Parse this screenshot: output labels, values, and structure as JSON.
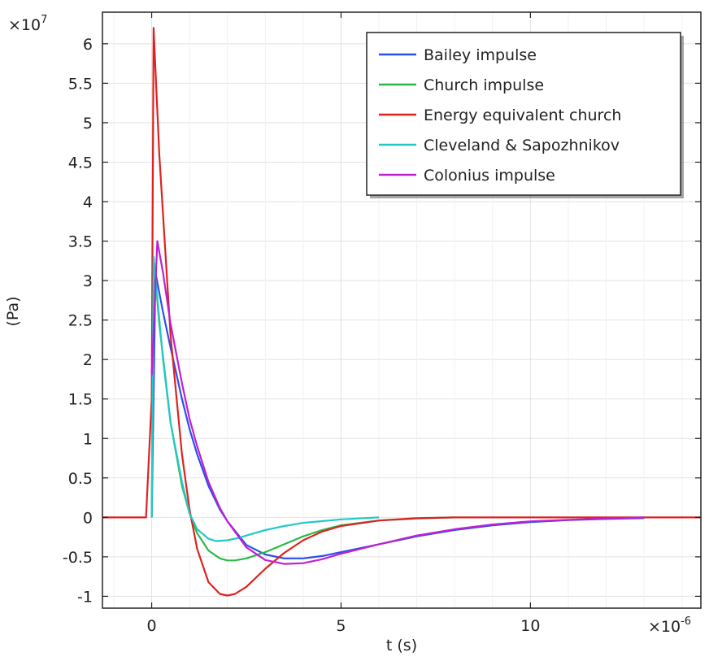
{
  "chart_data": {
    "type": "line",
    "xlabel": "t (s)",
    "ylabel": "(Pa)",
    "x_multiplier": "×10",
    "x_multiplier_exp": "-6",
    "y_multiplier": "×10",
    "y_multiplier_exp": "7",
    "xlim": [
      -1.3,
      14.5
    ],
    "ylim": [
      -1.15,
      6.4
    ],
    "x_ticks": [
      0,
      5,
      10
    ],
    "x_tick_labels": [
      "0",
      "5",
      "10"
    ],
    "y_ticks": [
      -1,
      -0.5,
      0,
      0.5,
      1,
      1.5,
      2,
      2.5,
      3,
      3.5,
      4,
      4.5,
      5,
      5.5,
      6
    ],
    "y_tick_labels": [
      "-1",
      "-0.5",
      "0",
      "0.5",
      "1",
      "1.5",
      "2",
      "2.5",
      "3",
      "3.5",
      "4",
      "4.5",
      "5",
      "5.5",
      "6"
    ],
    "grid": true,
    "legend_position": "top-right",
    "series": [
      {
        "name": "Bailey impulse",
        "color": "#2b4ff0",
        "x": [
          0,
          0.1,
          0.3,
          0.5,
          0.8,
          1.0,
          1.2,
          1.5,
          1.8,
          2.0,
          2.5,
          3.0,
          3.5,
          4.0,
          4.5,
          5.0,
          6.0,
          7.0,
          8.0,
          9.0,
          10.0,
          11.0,
          12.0,
          13.0
        ],
        "y": [
          0,
          3.1,
          2.6,
          2.15,
          1.5,
          1.12,
          0.8,
          0.4,
          0.1,
          -0.05,
          -0.35,
          -0.47,
          -0.52,
          -0.52,
          -0.49,
          -0.44,
          -0.34,
          -0.24,
          -0.16,
          -0.1,
          -0.06,
          -0.035,
          -0.02,
          -0.01
        ]
      },
      {
        "name": "Church impulse",
        "color": "#2db84a",
        "x": [
          0,
          0.05,
          0.2,
          0.5,
          0.8,
          1.0,
          1.2,
          1.5,
          1.8,
          2.0,
          2.2,
          2.5,
          3.0,
          3.5,
          4.0,
          4.5,
          5.0,
          6.0,
          7.0,
          8.0
        ],
        "y": [
          0,
          3.3,
          2.45,
          1.2,
          0.4,
          0.05,
          -0.2,
          -0.42,
          -0.52,
          -0.545,
          -0.545,
          -0.52,
          -0.44,
          -0.34,
          -0.24,
          -0.16,
          -0.1,
          -0.04,
          -0.015,
          0
        ]
      },
      {
        "name": "Energy equivalent church",
        "color": "#dd2222",
        "x": [
          -1.3,
          -0.15,
          0,
          0.05,
          0.2,
          0.5,
          0.8,
          1.0,
          1.2,
          1.5,
          1.8,
          2.0,
          2.2,
          2.5,
          3.0,
          3.5,
          4.0,
          4.5,
          5.0,
          6.0,
          7.0,
          8.0,
          9.0,
          14.5
        ],
        "y": [
          0,
          0,
          1.5,
          6.2,
          4.6,
          2.3,
          0.8,
          0.1,
          -0.4,
          -0.82,
          -0.97,
          -0.99,
          -0.97,
          -0.88,
          -0.65,
          -0.45,
          -0.29,
          -0.18,
          -0.11,
          -0.04,
          -0.01,
          0,
          0,
          0
        ]
      },
      {
        "name": "Cleveland & Sapozhnikov",
        "color": "#22c8c8",
        "x": [
          0,
          0.05,
          0.3,
          0.5,
          0.8,
          1.0,
          1.2,
          1.5,
          1.7,
          2.0,
          2.3,
          2.5,
          3.0,
          3.5,
          4.0,
          5.0,
          6.0
        ],
        "y": [
          0,
          3.3,
          2.0,
          1.2,
          0.45,
          0.05,
          -0.15,
          -0.27,
          -0.3,
          -0.29,
          -0.26,
          -0.23,
          -0.16,
          -0.11,
          -0.07,
          -0.025,
          0
        ]
      },
      {
        "name": "Colonius impulse",
        "color": "#c020d0",
        "x": [
          0,
          0.15,
          0.3,
          0.5,
          0.8,
          1.0,
          1.2,
          1.5,
          1.8,
          2.0,
          2.5,
          3.0,
          3.5,
          4.0,
          4.5,
          5.0,
          6.0,
          7.0,
          8.0,
          9.0,
          10.0,
          11.0,
          12.0,
          13.0
        ],
        "y": [
          1.8,
          3.5,
          3.1,
          2.45,
          1.7,
          1.25,
          0.9,
          0.45,
          0.12,
          -0.05,
          -0.38,
          -0.54,
          -0.59,
          -0.58,
          -0.53,
          -0.46,
          -0.34,
          -0.23,
          -0.15,
          -0.09,
          -0.05,
          -0.03,
          -0.015,
          0
        ]
      }
    ]
  }
}
